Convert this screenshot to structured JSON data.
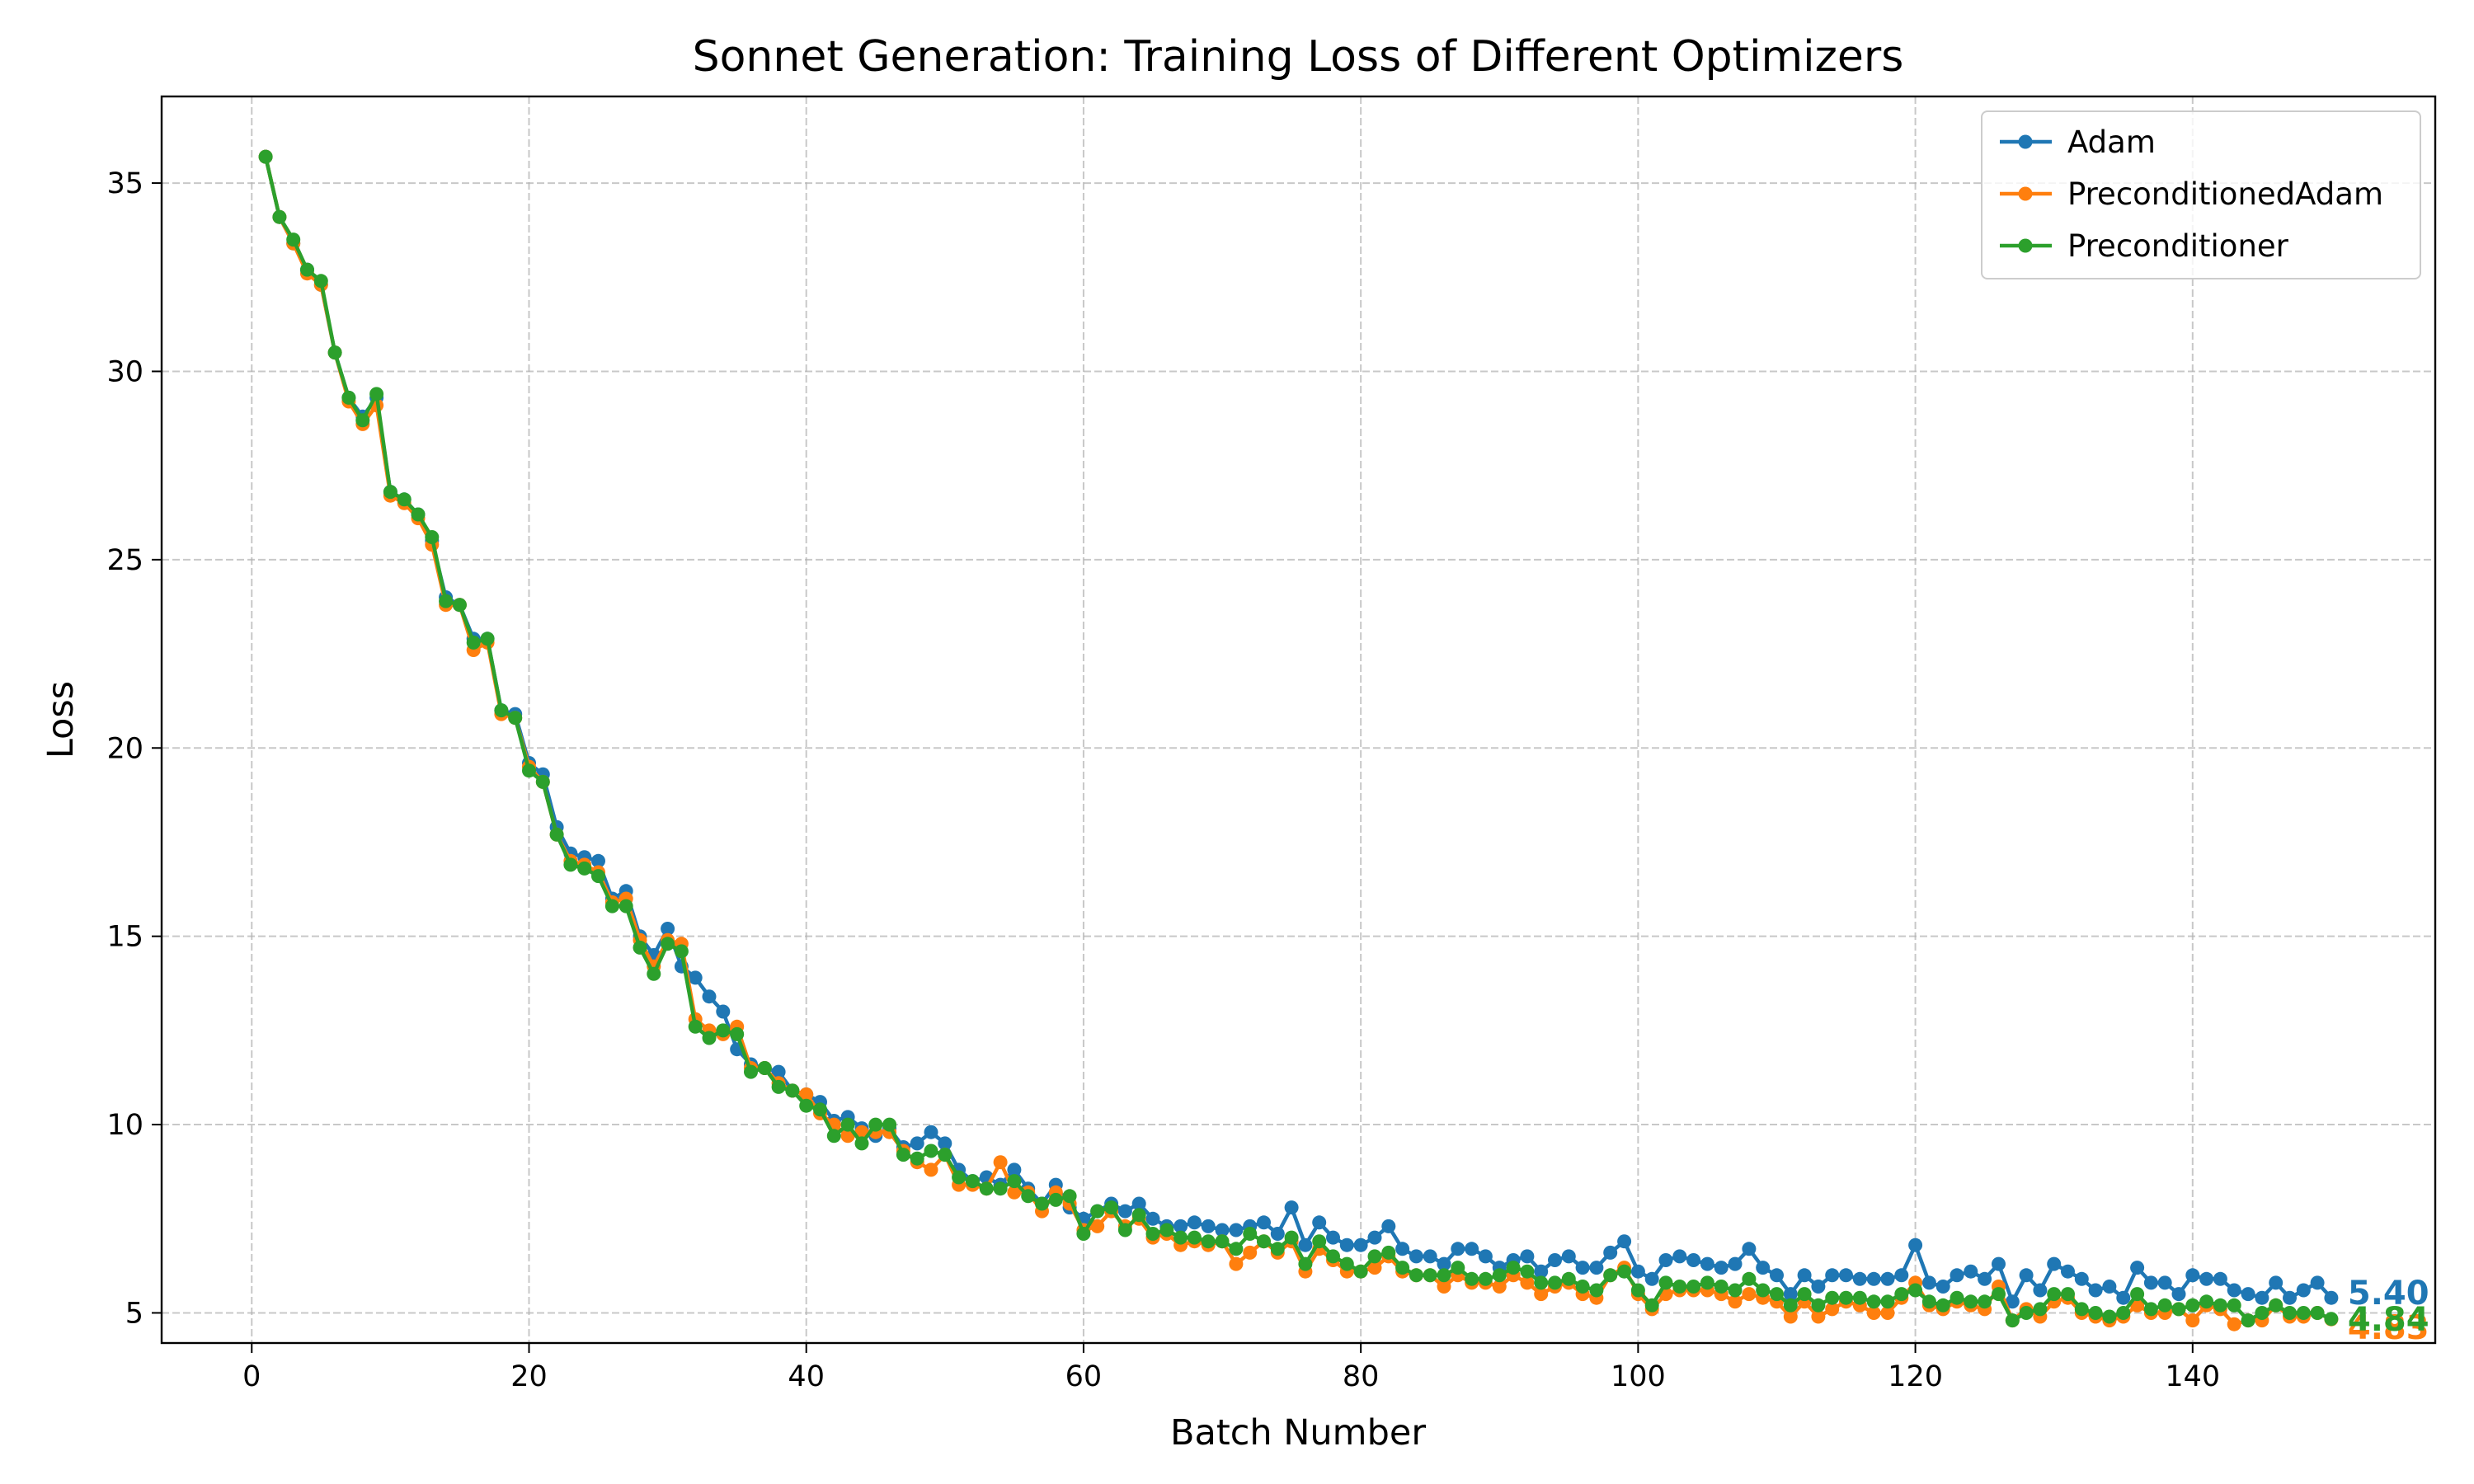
{
  "chart_data": {
    "type": "line",
    "title": "Sonnet Generation: Training Loss of Different Optimizers",
    "xlabel": "Batch Number",
    "ylabel": "Loss",
    "xlim": [
      -6.5,
      157.5
    ],
    "ylim": [
      4.2,
      37.3
    ],
    "xticks": [
      0,
      20,
      40,
      60,
      80,
      100,
      120,
      140
    ],
    "yticks": [
      5,
      10,
      15,
      20,
      25,
      30,
      35
    ],
    "grid": true,
    "legend_position": "top-right",
    "x": [
      1,
      2,
      3,
      4,
      5,
      6,
      7,
      8,
      9,
      10,
      11,
      12,
      13,
      14,
      15,
      16,
      17,
      18,
      19,
      20,
      21,
      22,
      23,
      24,
      25,
      26,
      27,
      28,
      29,
      30,
      31,
      32,
      33,
      34,
      35,
      36,
      37,
      38,
      39,
      40,
      41,
      42,
      43,
      44,
      45,
      46,
      47,
      48,
      49,
      50,
      51,
      52,
      53,
      54,
      55,
      56,
      57,
      58,
      59,
      60,
      61,
      62,
      63,
      64,
      65,
      66,
      67,
      68,
      69,
      70,
      71,
      72,
      73,
      74,
      75,
      76,
      77,
      78,
      79,
      80,
      81,
      82,
      83,
      84,
      85,
      86,
      87,
      88,
      89,
      90,
      91,
      92,
      93,
      94,
      95,
      96,
      97,
      98,
      99,
      100,
      101,
      102,
      103,
      104,
      105,
      106,
      107,
      108,
      109,
      110,
      111,
      112,
      113,
      114,
      115,
      116,
      117,
      118,
      119,
      120,
      121,
      122,
      123,
      124,
      125,
      126,
      127,
      128,
      129,
      130,
      131,
      132,
      133,
      134,
      135,
      136,
      137,
      138,
      139,
      140,
      141,
      142,
      143,
      144,
      145,
      146,
      147,
      148,
      149,
      150
    ],
    "series": [
      {
        "name": "Adam",
        "color": "#1f77b4",
        "end_label": "5.40",
        "values": [
          35.7,
          34.1,
          33.4,
          32.7,
          32.3,
          30.5,
          29.3,
          28.8,
          29.3,
          26.8,
          26.6,
          26.2,
          25.5,
          24.0,
          23.8,
          22.9,
          22.9,
          21.0,
          20.9,
          19.6,
          19.3,
          17.9,
          17.2,
          17.1,
          17.0,
          16.0,
          16.2,
          15.0,
          14.5,
          15.2,
          14.2,
          13.9,
          13.4,
          13.0,
          12.0,
          11.6,
          11.5,
          11.4,
          10.9,
          10.8,
          10.6,
          10.1,
          10.2,
          9.9,
          9.7,
          9.9,
          9.4,
          9.5,
          9.8,
          9.5,
          8.8,
          8.5,
          8.6,
          8.4,
          8.8,
          8.3,
          7.9,
          8.4,
          7.8,
          7.5,
          7.7,
          7.9,
          7.7,
          7.9,
          7.5,
          7.3,
          7.3,
          7.4,
          7.3,
          7.2,
          7.2,
          7.3,
          7.4,
          7.1,
          7.8,
          6.8,
          7.4,
          7.0,
          6.8,
          6.8,
          7.0,
          7.3,
          6.7,
          6.5,
          6.5,
          6.3,
          6.7,
          6.7,
          6.5,
          6.2,
          6.4,
          6.5,
          6.1,
          6.4,
          6.5,
          6.2,
          6.2,
          6.6,
          6.9,
          6.1,
          5.9,
          6.4,
          6.5,
          6.4,
          6.3,
          6.2,
          6.3,
          6.7,
          6.2,
          6.0,
          5.5,
          6.0,
          5.7,
          6.0,
          6.0,
          5.9,
          5.9,
          5.9,
          6.0,
          6.8,
          5.8,
          5.7,
          6.0,
          6.1,
          5.9,
          6.3,
          5.3,
          6.0,
          5.6,
          6.3,
          6.1,
          5.9,
          5.6,
          5.7,
          5.4,
          6.2,
          5.8,
          5.8,
          5.5,
          6.0,
          5.9,
          5.9,
          5.6,
          5.5,
          5.4,
          5.8,
          5.4,
          5.6,
          5.8,
          5.4
        ]
      },
      {
        "name": "PreconditionedAdam",
        "color": "#ff7f0e",
        "end_label": "4.83",
        "values": [
          35.7,
          34.1,
          33.4,
          32.6,
          32.3,
          30.5,
          29.2,
          28.6,
          29.1,
          26.7,
          26.5,
          26.1,
          25.4,
          23.8,
          23.8,
          22.6,
          22.8,
          20.9,
          20.8,
          19.5,
          19.1,
          17.7,
          17.0,
          16.9,
          16.7,
          15.9,
          16.0,
          14.9,
          14.2,
          14.9,
          14.8,
          12.8,
          12.5,
          12.4,
          12.6,
          11.5,
          11.5,
          11.1,
          10.9,
          10.8,
          10.3,
          10.0,
          9.7,
          9.8,
          9.8,
          9.8,
          9.3,
          9.0,
          8.8,
          9.2,
          8.4,
          8.4,
          8.3,
          9.0,
          8.2,
          8.2,
          7.7,
          8.2,
          7.9,
          7.2,
          7.3,
          7.7,
          7.3,
          7.5,
          7.0,
          7.1,
          6.8,
          6.9,
          6.8,
          6.9,
          6.3,
          6.6,
          6.9,
          6.6,
          6.9,
          6.1,
          6.7,
          6.4,
          6.1,
          6.1,
          6.2,
          6.5,
          6.1,
          6.0,
          6.0,
          5.7,
          6.0,
          5.8,
          5.8,
          5.7,
          6.0,
          5.8,
          5.5,
          5.7,
          5.8,
          5.5,
          5.4,
          6.0,
          6.2,
          5.5,
          5.1,
          5.5,
          5.6,
          5.6,
          5.6,
          5.5,
          5.3,
          5.5,
          5.4,
          5.3,
          4.9,
          5.3,
          4.9,
          5.1,
          5.3,
          5.2,
          5.0,
          5.0,
          5.4,
          5.8,
          5.2,
          5.1,
          5.3,
          5.2,
          5.1,
          5.7,
          4.8,
          5.1,
          4.9,
          5.3,
          5.4,
          5.0,
          4.9,
          4.8,
          4.9,
          5.2,
          5.0,
          5.0,
          5.1,
          4.8,
          5.2,
          5.1,
          4.7,
          4.8,
          4.8,
          5.2,
          4.9,
          4.9,
          5.0,
          4.83
        ]
      },
      {
        "name": "Preconditioner",
        "color": "#2ca02c",
        "end_label": "4.84",
        "values": [
          35.7,
          34.1,
          33.5,
          32.7,
          32.4,
          30.5,
          29.3,
          28.7,
          29.4,
          26.8,
          26.6,
          26.2,
          25.6,
          23.9,
          23.8,
          22.8,
          22.9,
          21.0,
          20.8,
          19.4,
          19.1,
          17.7,
          16.9,
          16.8,
          16.6,
          15.8,
          15.8,
          14.7,
          14.0,
          14.8,
          14.6,
          12.6,
          12.3,
          12.5,
          12.4,
          11.4,
          11.5,
          11.0,
          10.9,
          10.5,
          10.4,
          9.7,
          10.0,
          9.5,
          10.0,
          10.0,
          9.2,
          9.1,
          9.3,
          9.2,
          8.6,
          8.5,
          8.3,
          8.3,
          8.5,
          8.1,
          7.9,
          8.0,
          8.1,
          7.1,
          7.7,
          7.8,
          7.2,
          7.6,
          7.1,
          7.2,
          7.0,
          7.0,
          6.9,
          6.9,
          6.7,
          7.1,
          6.9,
          6.7,
          7.0,
          6.3,
          6.9,
          6.5,
          6.3,
          6.1,
          6.5,
          6.6,
          6.2,
          6.0,
          6.0,
          6.0,
          6.2,
          5.9,
          5.9,
          6.0,
          6.2,
          6.1,
          5.8,
          5.8,
          5.9,
          5.7,
          5.6,
          6.0,
          6.1,
          5.6,
          5.2,
          5.8,
          5.7,
          5.7,
          5.8,
          5.7,
          5.6,
          5.9,
          5.6,
          5.5,
          5.2,
          5.5,
          5.2,
          5.4,
          5.4,
          5.4,
          5.3,
          5.3,
          5.5,
          5.6,
          5.3,
          5.2,
          5.4,
          5.3,
          5.3,
          5.5,
          4.8,
          5.0,
          5.1,
          5.5,
          5.5,
          5.1,
          5.0,
          4.9,
          5.0,
          5.5,
          5.1,
          5.2,
          5.1,
          5.2,
          5.3,
          5.2,
          5.2,
          4.8,
          5.0,
          5.2,
          5.0,
          5.0,
          5.0,
          4.84
        ]
      }
    ]
  }
}
